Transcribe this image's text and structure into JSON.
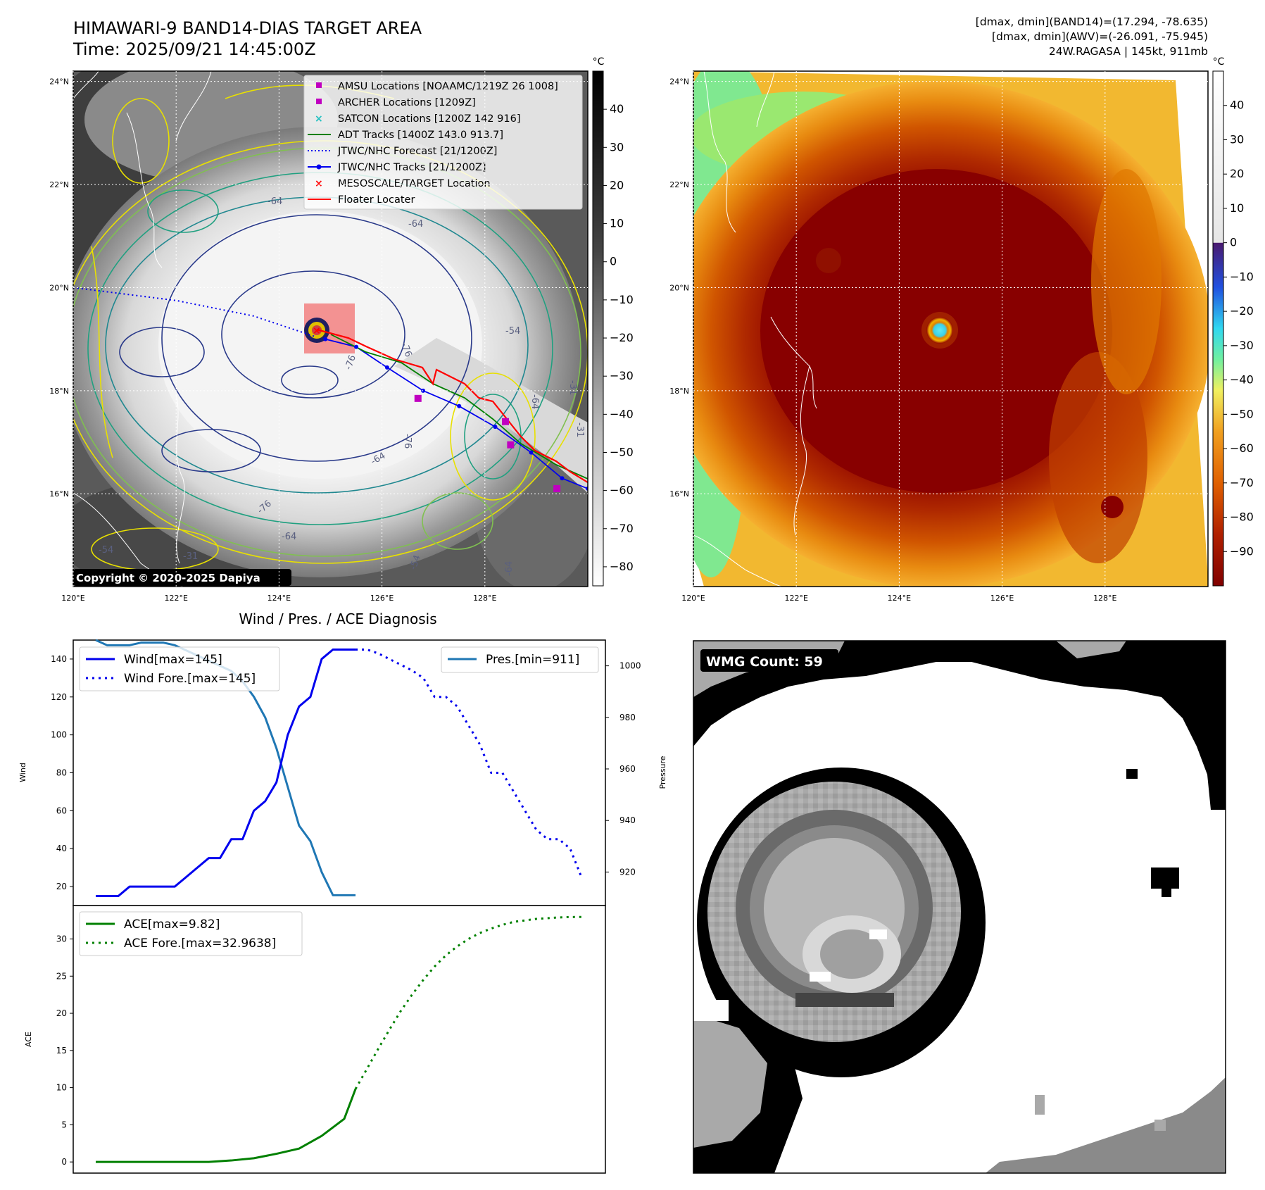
{
  "header": {
    "title_line1": "HIMAWARI-9 BAND14-DIAS TARGET AREA",
    "title_line2": "Time: 2025/09/21 14:45:00Z",
    "info_line1": "[dmax, dmin](BAND14)=(17.294, -78.635)",
    "info_line2": "[dmax, dmin](AWV)=(-26.091, -75.945)",
    "info_line3": "24W.RAGASA | 145kt, 911mb"
  },
  "colors": {
    "wind": "#0000ee",
    "pressure": "#1f77b4",
    "ace": "#008000",
    "floater": "#ff0000",
    "amsu": "#c000c0",
    "satcon": "#20c0c0"
  },
  "chart_data": [
    {
      "type": "map",
      "panel": "band14-grayscale",
      "lon_ticks": [
        "120°E",
        "122°E",
        "124°E",
        "126°E",
        "128°E"
      ],
      "lat_ticks": [
        "24°N",
        "22°N",
        "20°N",
        "18°N",
        "16°N"
      ],
      "lon_range": [
        120,
        130
      ],
      "lat_range": [
        14.2,
        24.2
      ],
      "colorbar": {
        "unit": "°C",
        "ticks": [
          40,
          30,
          20,
          10,
          0,
          -10,
          -20,
          -30,
          -40,
          -50,
          -60,
          -70,
          -80
        ],
        "range": [
          -85,
          50
        ]
      },
      "legend": [
        "AMSU Locations [NOAAMC/1219Z 26 1008]",
        "ARCHER Locations [1209Z]",
        "SATCON Locations [1200Z 142 916]",
        "ADT Tracks [1400Z 143.0 913.7]",
        "JTWC/NHC Forecast [21/1200Z]",
        "JTWC/NHC Tracks [21/1200Z]",
        "MESOSCALE/TARGET Location",
        "Floater Locater"
      ],
      "contour_labels": [
        "-64",
        "-64",
        "-76",
        "-76",
        "-76",
        "-64",
        "-54",
        "-54",
        "-31",
        "-64",
        "-76",
        "-64",
        "-54",
        "-31",
        "-64",
        "-31"
      ],
      "copyright": "Copyright © 2020-2025 Dapiya",
      "storm_center": {
        "lon": 124.7,
        "lat": 19.05
      },
      "forecast_track": [
        [
          120.0,
          20.0
        ],
        [
          122.0,
          19.75
        ],
        [
          123.5,
          19.45
        ],
        [
          124.7,
          19.05
        ]
      ],
      "best_track": [
        [
          124.9,
          19.0
        ],
        [
          125.5,
          18.85
        ],
        [
          126.1,
          18.45
        ],
        [
          126.8,
          18.0
        ],
        [
          127.5,
          17.7
        ],
        [
          128.2,
          17.3
        ],
        [
          128.9,
          16.8
        ],
        [
          129.5,
          16.3
        ],
        [
          130.0,
          16.1
        ]
      ],
      "amsu_points": [
        [
          126.7,
          17.85
        ],
        [
          128.4,
          17.4
        ],
        [
          128.5,
          16.95
        ],
        [
          129.4,
          16.1
        ]
      ]
    },
    {
      "type": "map",
      "panel": "band14-color",
      "lon_ticks": [
        "120°E",
        "122°E",
        "124°E",
        "126°E",
        "128°E"
      ],
      "lat_ticks": [
        "24°N",
        "22°N",
        "20°N",
        "18°N",
        "16°N"
      ],
      "lon_range": [
        120,
        130
      ],
      "lat_range": [
        14.2,
        24.2
      ],
      "colorbar": {
        "unit": "°C",
        "ticks": [
          40,
          30,
          20,
          10,
          0,
          -10,
          -20,
          -30,
          -40,
          -50,
          -60,
          -70,
          -80,
          -90
        ],
        "range": [
          -100,
          50
        ]
      },
      "storm_center": {
        "lon": 124.7,
        "lat": 19.05
      }
    },
    {
      "type": "line",
      "title": "Wind / Pres. / ACE Diagnosis",
      "ylabel": "Wind",
      "ylabel_right": "Pressure",
      "ylim": [
        10,
        150
      ],
      "ylim_right": [
        907,
        1010
      ],
      "yticks": [
        20,
        40,
        60,
        80,
        100,
        120,
        140
      ],
      "yticks_right": [
        920,
        940,
        960,
        980,
        1000
      ],
      "x": [
        0,
        1,
        2,
        3,
        4,
        5,
        6,
        7,
        8,
        9,
        10,
        11,
        12,
        13,
        14,
        15,
        16,
        17,
        18,
        19,
        20,
        21,
        22,
        23,
        24,
        25,
        26,
        27,
        28,
        29,
        30,
        31,
        32,
        33,
        34,
        35,
        36,
        37,
        38,
        39,
        40,
        41,
        42,
        43
      ],
      "series": [
        {
          "name": "Wind[max=145]",
          "x": [
            0,
            1,
            2,
            3,
            4,
            5,
            6,
            7,
            8,
            9,
            10,
            11,
            12,
            13,
            14,
            15,
            16,
            17,
            18,
            19,
            20,
            21,
            22,
            23
          ],
          "values": [
            15,
            15,
            15,
            20,
            20,
            20,
            20,
            20,
            25,
            30,
            35,
            35,
            45,
            45,
            60,
            65,
            75,
            100,
            115,
            120,
            140,
            145,
            145,
            145
          ]
        },
        {
          "name": "Wind Fore.[max=145]",
          "x": [
            23,
            24,
            25,
            26,
            27,
            28,
            29,
            30,
            31,
            32,
            33,
            34,
            35,
            36,
            37,
            38,
            39,
            40,
            41,
            42,
            43
          ],
          "values": [
            145,
            145,
            143,
            140,
            137,
            134,
            130,
            120,
            120,
            115,
            105,
            95,
            80,
            80,
            70,
            60,
            50,
            45,
            45,
            40,
            25
          ]
        },
        {
          "name": "Pres.[min=911]",
          "axis": "right",
          "x": [
            0,
            1,
            2,
            3,
            4,
            5,
            6,
            7,
            8,
            9,
            10,
            11,
            12,
            13,
            14,
            15,
            16,
            17,
            18,
            19,
            20,
            21,
            22,
            23
          ],
          "values": [
            1010,
            1008,
            1008,
            1008,
            1009,
            1009,
            1009,
            1008,
            1006,
            1004,
            1002,
            1000,
            998,
            994,
            988,
            980,
            968,
            953,
            938,
            932,
            920,
            911,
            911,
            911
          ]
        }
      ]
    },
    {
      "type": "line",
      "ylabel": "ACE",
      "ylim": [
        -1.5,
        34.5
      ],
      "yticks": [
        0,
        5,
        10,
        15,
        20,
        25,
        30
      ],
      "series": [
        {
          "name": "ACE[max=9.82]",
          "x": [
            0,
            2,
            4,
            6,
            8,
            10,
            12,
            14,
            16,
            18,
            20,
            22,
            23
          ],
          "values": [
            0,
            0,
            0,
            0,
            0,
            0,
            0.2,
            0.5,
            1.1,
            1.8,
            3.5,
            5.8,
            9.82
          ]
        },
        {
          "name": "ACE Fore.[max=32.9638]",
          "x": [
            23,
            24,
            25,
            26,
            27,
            28,
            29,
            30,
            31,
            32,
            33,
            34,
            35,
            36,
            37,
            38,
            39,
            40,
            41,
            42,
            43
          ],
          "values": [
            9.82,
            12.5,
            15.2,
            17.8,
            20.3,
            22.5,
            24.5,
            26.3,
            27.8,
            29.0,
            30.0,
            30.8,
            31.4,
            31.9,
            32.3,
            32.5,
            32.7,
            32.8,
            32.9,
            32.95,
            32.9638
          ]
        }
      ]
    },
    {
      "type": "heatmap",
      "panel": "wmg-classification",
      "label": "WMG Count: 59",
      "value": 59
    }
  ]
}
